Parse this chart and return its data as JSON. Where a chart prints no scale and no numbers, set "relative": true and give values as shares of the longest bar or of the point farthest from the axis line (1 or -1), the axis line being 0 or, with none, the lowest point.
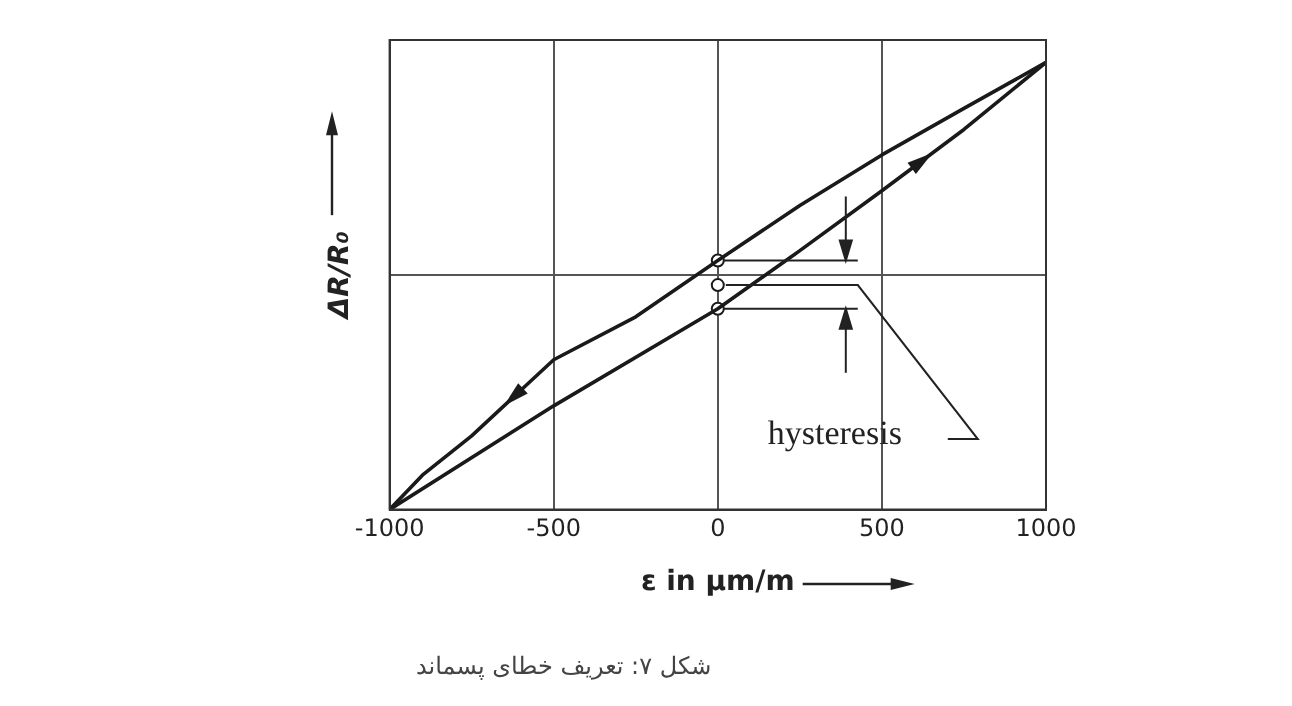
{
  "chart_data": {
    "type": "line",
    "xlabel": "ε in µm/m",
    "ylabel": "ΔR/R₀",
    "relative": true,
    "xlim": [
      -1000,
      1000
    ],
    "xticks": [
      -1000,
      -500,
      0,
      500,
      1000
    ],
    "grid": true,
    "legend": false,
    "annotations": [
      "hysteresis",
      "شکل ۷: تعریف خطای پسماند"
    ],
    "series": [
      {
        "color": "#1a1a1a",
        "marker": "none",
        "x": [
          1000,
          750,
          500,
          250,
          0,
          -250,
          -500,
          -750,
          -900,
          -1000
        ],
        "values": [
          1,
          0.897,
          0.793,
          0.68,
          0.557,
          0.431,
          0.335,
          0.165,
          0.077,
          0
        ]
      },
      {
        "color": "#1a1a1a",
        "marker": "none",
        "x": [
          -1000,
          -500,
          0,
          250,
          500,
          750,
          1000
        ],
        "values": [
          0,
          0.232,
          0.449,
          0.579,
          0.713,
          0.85,
          1
        ]
      },
      {
        "type": "scatter",
        "color": "#1a1a1a",
        "marker": "circle",
        "x": [
          0,
          0,
          0
        ],
        "values": [
          0.557,
          0.502,
          0.449
        ]
      }
    ]
  }
}
